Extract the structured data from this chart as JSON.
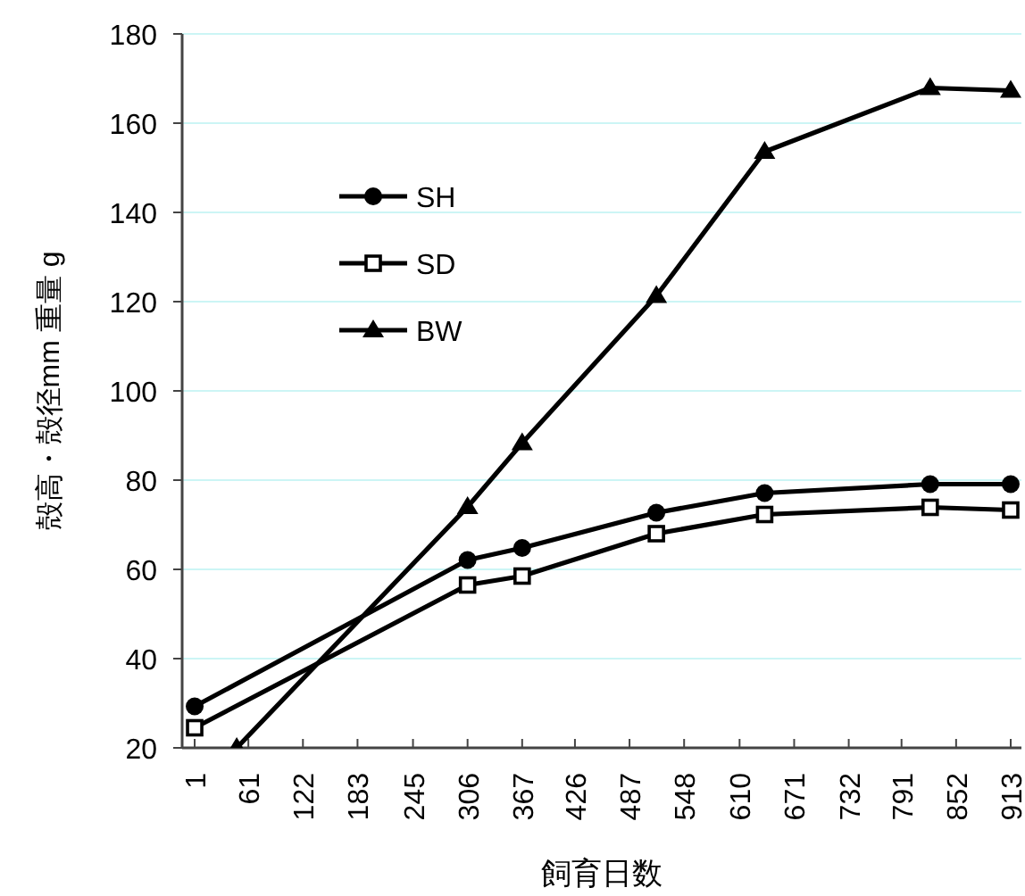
{
  "chart_data": {
    "type": "line",
    "xlabel": "飼育日数",
    "ylabel": "殻高・殻径mm 重量 g",
    "xlim": [
      -13,
      925
    ],
    "xticks": [
      1,
      61,
      122,
      183,
      245,
      306,
      367,
      426,
      487,
      548,
      610,
      671,
      732,
      791,
      852,
      913
    ],
    "ylim": [
      20,
      180
    ],
    "yticks": [
      20,
      40,
      60,
      80,
      100,
      120,
      140,
      160,
      180
    ],
    "grid": "y",
    "legend": "top left",
    "line_style": "solid",
    "series": [
      {
        "name": "SH",
        "color": "#000000",
        "marker": "circle",
        "x": [
          1,
          306,
          367,
          517,
          638,
          823,
          913
        ],
        "values": [
          29.3,
          62.1,
          64.8,
          72.7,
          77.1,
          79.1,
          79.1
        ]
      },
      {
        "name": "SD",
        "color": "#000000",
        "marker": "square",
        "x": [
          1,
          306,
          367,
          517,
          638,
          823,
          913
        ],
        "values": [
          24.5,
          56.5,
          58.5,
          68,
          72.3,
          73.9,
          73.3
        ]
      },
      {
        "name": "BW",
        "color": "#000000",
        "marker": "triangle",
        "x": [
          48,
          306,
          367,
          517,
          638,
          823,
          913
        ],
        "values": [
          20,
          74,
          88.3,
          121.3,
          153.6,
          167.9,
          167.3
        ]
      }
    ]
  }
}
